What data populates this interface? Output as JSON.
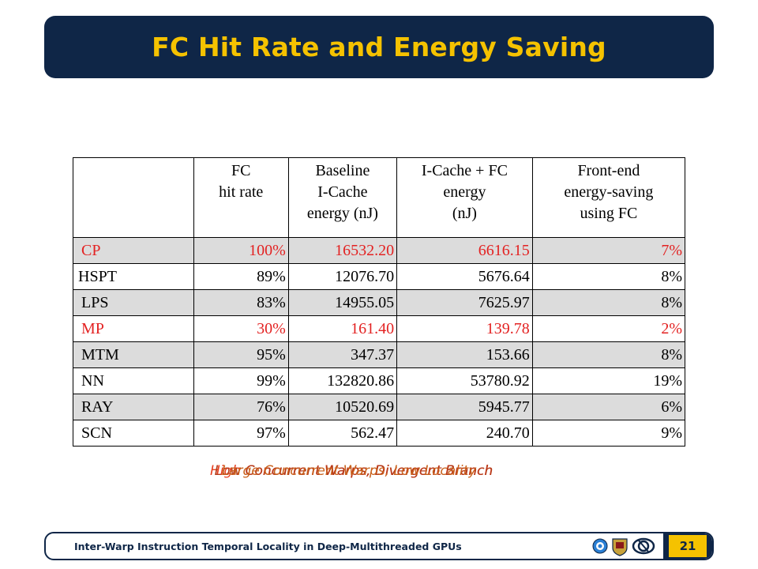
{
  "slide": {
    "title": "FC Hit Rate and Energy Saving",
    "page_number": "21",
    "footer_text": "Inter-Warp Instruction Temporal Locality in Deep-Multithreaded GPUs"
  },
  "table": {
    "headers": [
      "",
      "FC\nhit rate",
      "Baseline\nI-Cache\nenergy (nJ)",
      "I-Cache + FC\nenergy\n(nJ)",
      "Front-end\nenergy-saving\nusing FC"
    ],
    "rows": [
      {
        "cells": [
          "CP",
          "100%",
          "16532.20",
          "6616.15",
          "7%"
        ]
      },
      {
        "cells": [
          "HSPT",
          "89%",
          "12076.70",
          "5676.64",
          "8%"
        ]
      },
      {
        "cells": [
          "LPS",
          "83%",
          "14955.05",
          "7625.97",
          "8%"
        ]
      },
      {
        "cells": [
          "MP",
          "30%",
          "161.40",
          "139.78",
          "2%"
        ]
      },
      {
        "cells": [
          "MTM",
          "95%",
          "347.37",
          "153.66",
          "8%"
        ]
      },
      {
        "cells": [
          "NN",
          "99%",
          "132820.86",
          "53780.92",
          "19%"
        ]
      },
      {
        "cells": [
          "RAY",
          "76%",
          "10520.69",
          "5945.77",
          "6%"
        ]
      },
      {
        "cells": [
          "SCN",
          "97%",
          "562.47",
          "240.70",
          "9%"
        ]
      }
    ]
  },
  "overlapping_notes": [
    "High Concurrent Warps, Divergent Branch",
    "Low Concurrent Warps, Divergent Branch",
    "Large Concurrent Warps, Low Locality"
  ],
  "colors": {
    "navy": "#0f2647",
    "gold": "#f5c200",
    "red_row": "#e32222",
    "shaded_row": "#dcdcdc"
  },
  "icons": [
    "university-logo-1",
    "university-logo-2",
    "university-logo-3"
  ]
}
